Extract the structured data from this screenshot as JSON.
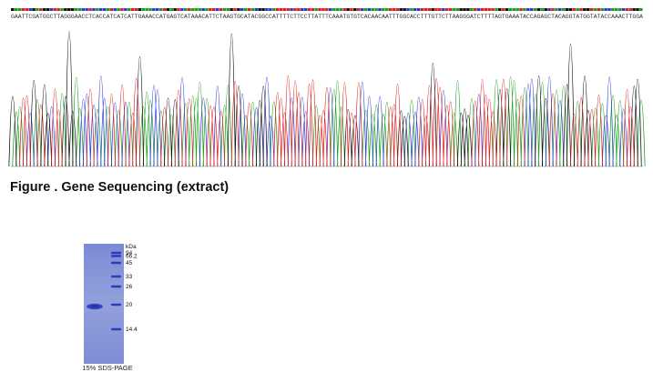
{
  "sequence": {
    "bases": "GAATTCGATGGCTTAGGGAACCTCACCATCATCATTGAAACCATGAGTCATAAACATTCTAAGTGCATACGGCCATTTTCTTCCTTATTTCAAATGTGTCACAACAATTTGGCACCTTTGTTCTTAAGGGATCTTTTAGTGAAATACCAGAGCTACAGGTATGGTATACCAAACTTGGA",
    "colors": {
      "A": "#1aa01a",
      "C": "#2b3bd8",
      "G": "#111111",
      "T": "#e02020"
    }
  },
  "figure": {
    "caption": "Figure . Gene Sequencing (extract)"
  },
  "gel": {
    "caption": "15% SDS-PAGE",
    "unit_label": "kDa",
    "markers": [
      "94",
      "66.2",
      "45",
      "33",
      "26",
      "20",
      "14.4"
    ],
    "gel_color": "#8a97d8",
    "band_color": "#2a3cb8"
  }
}
